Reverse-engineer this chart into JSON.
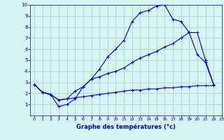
{
  "bg_color": "#d8f5f5",
  "grid_color": "#b0d0d0",
  "line_color": "#0000cc",
  "xlabel": "Graphe des températures (°c)",
  "xlim": [
    -0.5,
    23
  ],
  "ylim": [
    0,
    10
  ],
  "xticks": [
    0,
    1,
    2,
    3,
    4,
    5,
    6,
    7,
    8,
    9,
    10,
    11,
    12,
    13,
    14,
    15,
    16,
    17,
    18,
    19,
    20,
    21,
    22,
    23
  ],
  "yticks": [
    1,
    2,
    3,
    4,
    5,
    6,
    7,
    8,
    9,
    10
  ],
  "line1_x": [
    0,
    1,
    2,
    3,
    4,
    5,
    6,
    7,
    8,
    9,
    10,
    11,
    12,
    13,
    14,
    15,
    16,
    17,
    18,
    19,
    20,
    21,
    22
  ],
  "line1_y": [
    2.8,
    2.1,
    1.9,
    0.8,
    1.0,
    1.5,
    2.6,
    3.3,
    4.2,
    5.3,
    6.0,
    6.8,
    8.5,
    9.3,
    9.5,
    9.9,
    10.0,
    8.7,
    8.5,
    7.5,
    5.5,
    4.8,
    2.8
  ],
  "line2_x": [
    0,
    1,
    2,
    3,
    4,
    5,
    6,
    7,
    8,
    9,
    10,
    11,
    12,
    13,
    14,
    15,
    16,
    17,
    18,
    19,
    20,
    21,
    22
  ],
  "line2_y": [
    2.8,
    2.1,
    1.9,
    1.4,
    1.5,
    2.2,
    2.6,
    3.3,
    3.5,
    3.8,
    4.0,
    4.3,
    4.8,
    5.2,
    5.5,
    5.8,
    6.2,
    6.5,
    7.0,
    7.5,
    7.5,
    5.0,
    2.8
  ],
  "line3_x": [
    0,
    1,
    2,
    3,
    4,
    5,
    6,
    7,
    8,
    9,
    10,
    11,
    12,
    13,
    14,
    15,
    16,
    17,
    18,
    19,
    20,
    21,
    22
  ],
  "line3_y": [
    2.8,
    2.1,
    1.9,
    1.4,
    1.5,
    1.6,
    1.7,
    1.8,
    1.9,
    2.0,
    2.1,
    2.2,
    2.3,
    2.3,
    2.4,
    2.4,
    2.5,
    2.5,
    2.6,
    2.6,
    2.7,
    2.7,
    2.7
  ],
  "tick_color": "#0000cc",
  "tick_fontsize": 4.5,
  "ytick_fontsize": 5.2
}
